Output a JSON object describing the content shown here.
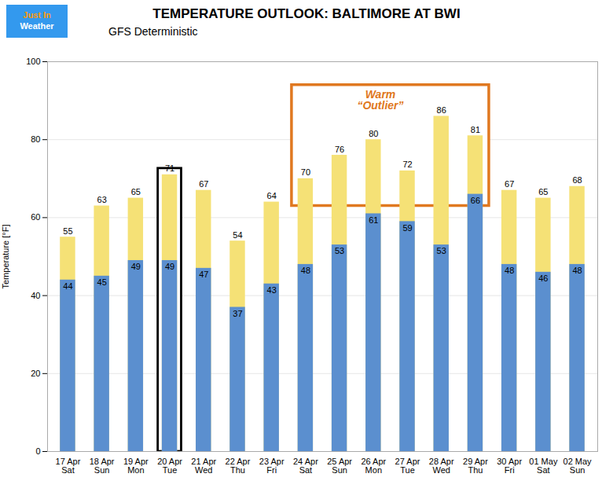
{
  "chart_data": {
    "type": "bar",
    "title": "TEMPERATURE OUTLOOK: BALTIMORE AT BWI",
    "subtitle": "GFS Deterministic",
    "logo_text": [
      "Just In",
      "Weather"
    ],
    "categories": [
      "17 Apr\nSat",
      "18 Apr\nSun",
      "19 Apr\nMon",
      "20 Apr\nTue",
      "21 Apr\nWed",
      "22 Apr\nThu",
      "23 Apr\nFri",
      "24 Apr\nSat",
      "25 Apr\nSun",
      "26 Apr\nMon",
      "27 Apr\nTue",
      "28 Apr\nWed",
      "29 Apr\nThu",
      "30 Apr\nFri",
      "01 May\nSat",
      "02 May\nSun"
    ],
    "series": [
      {
        "color": "#f5e176",
        "values": [
          55,
          63,
          65,
          71,
          67,
          54,
          64,
          70,
          76,
          80,
          72,
          86,
          81,
          67,
          65,
          68
        ]
      },
      {
        "color": "#5b8fcf",
        "values": [
          44,
          45,
          49,
          49,
          47,
          37,
          43,
          48,
          53,
          61,
          59,
          53,
          66,
          48,
          46,
          48
        ]
      }
    ],
    "stacked": false,
    "data_labels": true,
    "ylabel": "Temperature [°F]",
    "ylim": [
      0,
      100
    ],
    "yticks": [
      0,
      20,
      40,
      60,
      80,
      100
    ],
    "grid": true,
    "annotations": [
      {
        "text": "Warm\n“Outlier”",
        "color": "#e07820",
        "categories": [
          "24 Apr\nSat",
          "25 Apr\nSun",
          "26 Apr\nMon",
          "27 Apr\nTue",
          "28 Apr\nWed",
          "29 Apr\nThu"
        ],
        "ylim": [
          63,
          94
        ]
      },
      {
        "color": "#000000",
        "categories": [
          "20 Apr\nTue"
        ]
      }
    ]
  }
}
